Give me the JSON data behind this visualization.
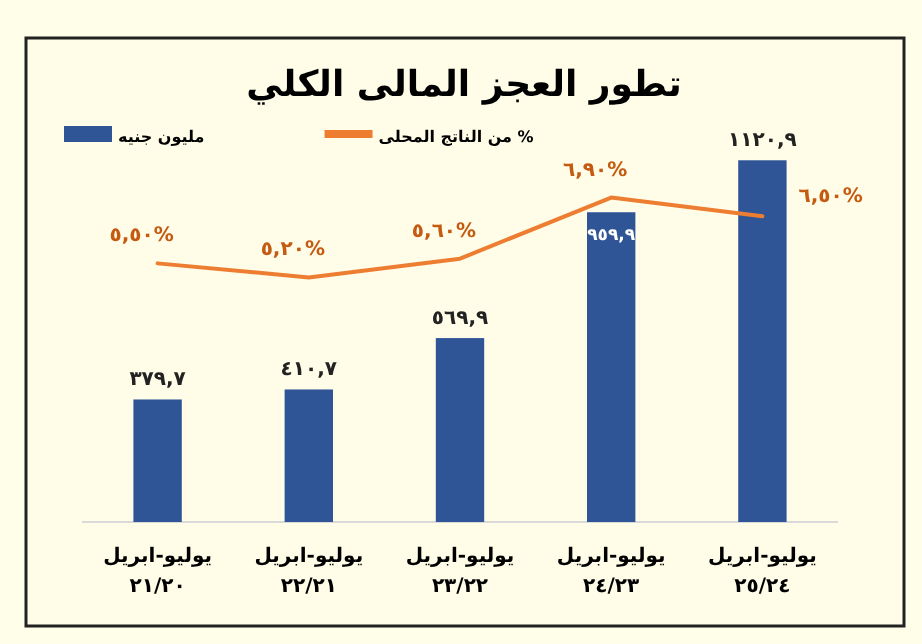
{
  "chart_data": {
    "type": "bar",
    "title": "تطور العجز المالى الكلي",
    "categories": [
      "يوليو-ابريل ٢١/٢٠",
      "يوليو-ابريل ٢٢/٢١",
      "يوليو-ابريل ٢٣/٢٢",
      "يوليو-ابريل ٢٤/٢٣",
      "يوليو-ابريل ٢٥/٢٤"
    ],
    "series": [
      {
        "name": "مليون جنيه",
        "type": "bar",
        "color": "#2f5597",
        "values": [
          379.7,
          410.7,
          569.9,
          959.9,
          1120.9
        ],
        "value_labels": [
          "٣٧٩,٧",
          "٤١٠,٧",
          "٥٦٩,٩",
          "٩٥٩,٩",
          "١١٢٠,٩"
        ]
      },
      {
        "name": "% من الناتج المحلى",
        "type": "line",
        "axis": "y2",
        "color": "#ed7d31",
        "values": [
          5.5,
          5.2,
          5.6,
          6.9,
          6.5
        ],
        "value_labels": [
          "٥,٥٠%",
          "٥,٢٠%",
          "٥,٦٠%",
          "٦,٩٠%",
          "٦,٥٠%"
        ]
      }
    ],
    "legend": "top",
    "grid": false
  }
}
